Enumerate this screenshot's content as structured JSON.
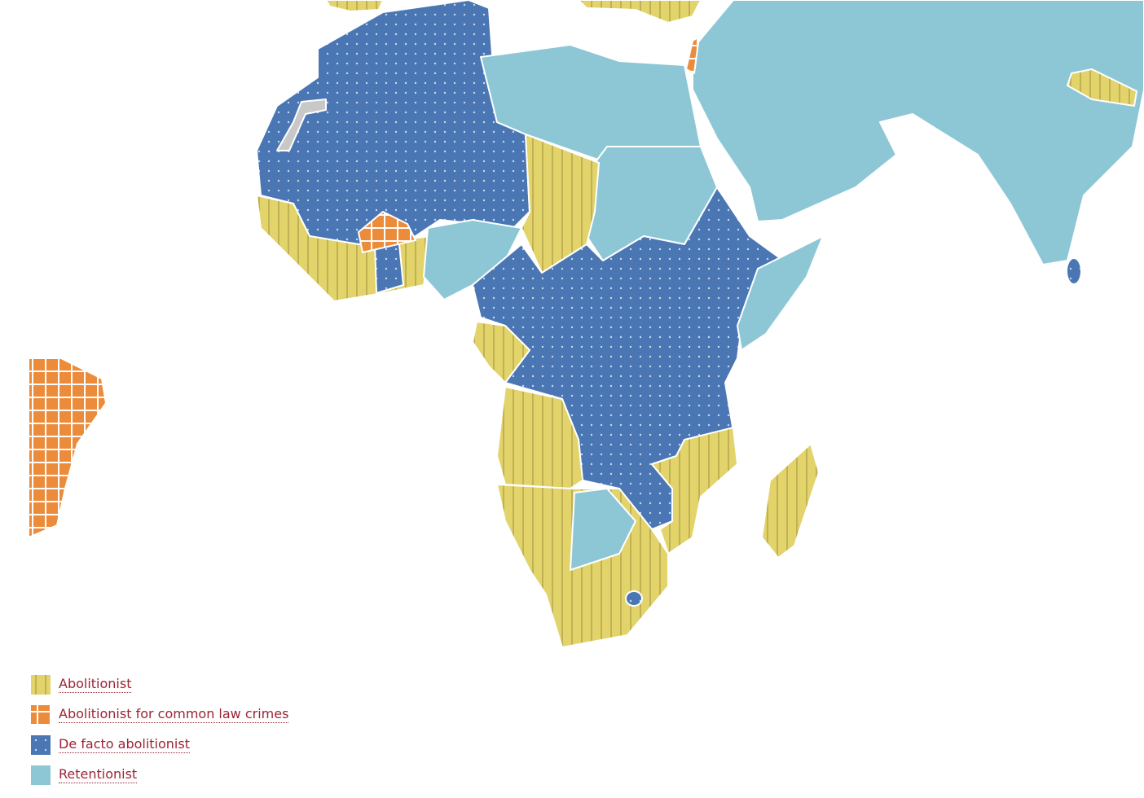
{
  "legend": {
    "items": [
      "Abolitionist",
      "Abolitionist for common law crimes",
      "De facto abolitionist",
      "Retentionist"
    ]
  }
}
